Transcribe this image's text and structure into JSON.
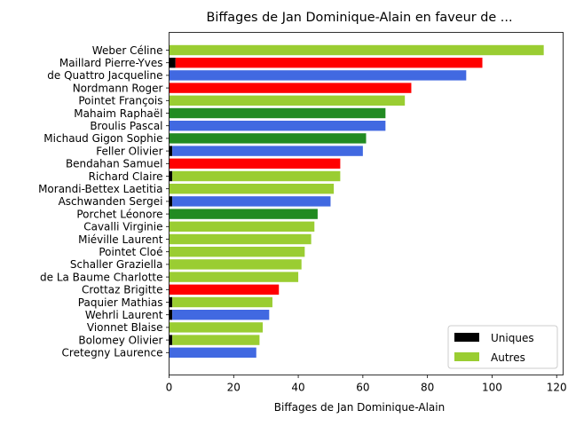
{
  "chart_data": {
    "type": "bar",
    "orientation": "horizontal",
    "title": "Biffages de Jan Dominique-Alain en faveur de ...",
    "xlabel": "Biffages de Jan Dominique-Alain",
    "ylabel": "",
    "xlim": [
      0,
      122
    ],
    "xticks": [
      0,
      20,
      40,
      60,
      80,
      100,
      120
    ],
    "grid": false,
    "legend": {
      "placement": "lower-right",
      "entries": [
        {
          "label": "Uniques",
          "color": "#000000"
        },
        {
          "label": "Autres",
          "color": "#9acd32"
        }
      ]
    },
    "categories": [
      "Weber Céline",
      "Maillard Pierre-Yves",
      "de Quattro Jacqueline",
      "Nordmann Roger",
      "Pointet François",
      "Mahaim Raphaël",
      "Broulis Pascal",
      "Michaud Gigon Sophie",
      "Feller Olivier",
      "Bendahan Samuel",
      "Richard Claire",
      "Morandi-Bettex Laetitia",
      "Aschwanden Sergei",
      "Porchet Léonore",
      "Cavalli Virginie",
      "Miéville Laurent",
      "Pointet Cloé",
      "Schaller Graziella",
      "de La Baume Charlotte",
      "Crottaz Brigitte",
      "Paquier Mathias",
      "Wehrli Laurent",
      "Vionnet Blaise",
      "Bolomey Olivier",
      "Cretegny Laurence"
    ],
    "values": [
      116,
      97,
      92,
      75,
      73,
      67,
      67,
      61,
      60,
      53,
      53,
      51,
      50,
      46,
      45,
      44,
      42,
      41,
      40,
      34,
      32,
      31,
      29,
      28,
      27
    ],
    "uniques": [
      0,
      2,
      0,
      0,
      0,
      0,
      0,
      0,
      1,
      0,
      1,
      0,
      1,
      0,
      0,
      0,
      0,
      0,
      0,
      0,
      1,
      1,
      0,
      1,
      0
    ],
    "bar_colors": [
      "#9acd32",
      "#ff0000",
      "#4169e1",
      "#ff0000",
      "#9acd32",
      "#228b22",
      "#4169e1",
      "#228b22",
      "#4169e1",
      "#ff0000",
      "#9acd32",
      "#9acd32",
      "#4169e1",
      "#228b22",
      "#9acd32",
      "#9acd32",
      "#9acd32",
      "#9acd32",
      "#9acd32",
      "#ff0000",
      "#9acd32",
      "#4169e1",
      "#9acd32",
      "#9acd32",
      "#4169e1"
    ]
  }
}
